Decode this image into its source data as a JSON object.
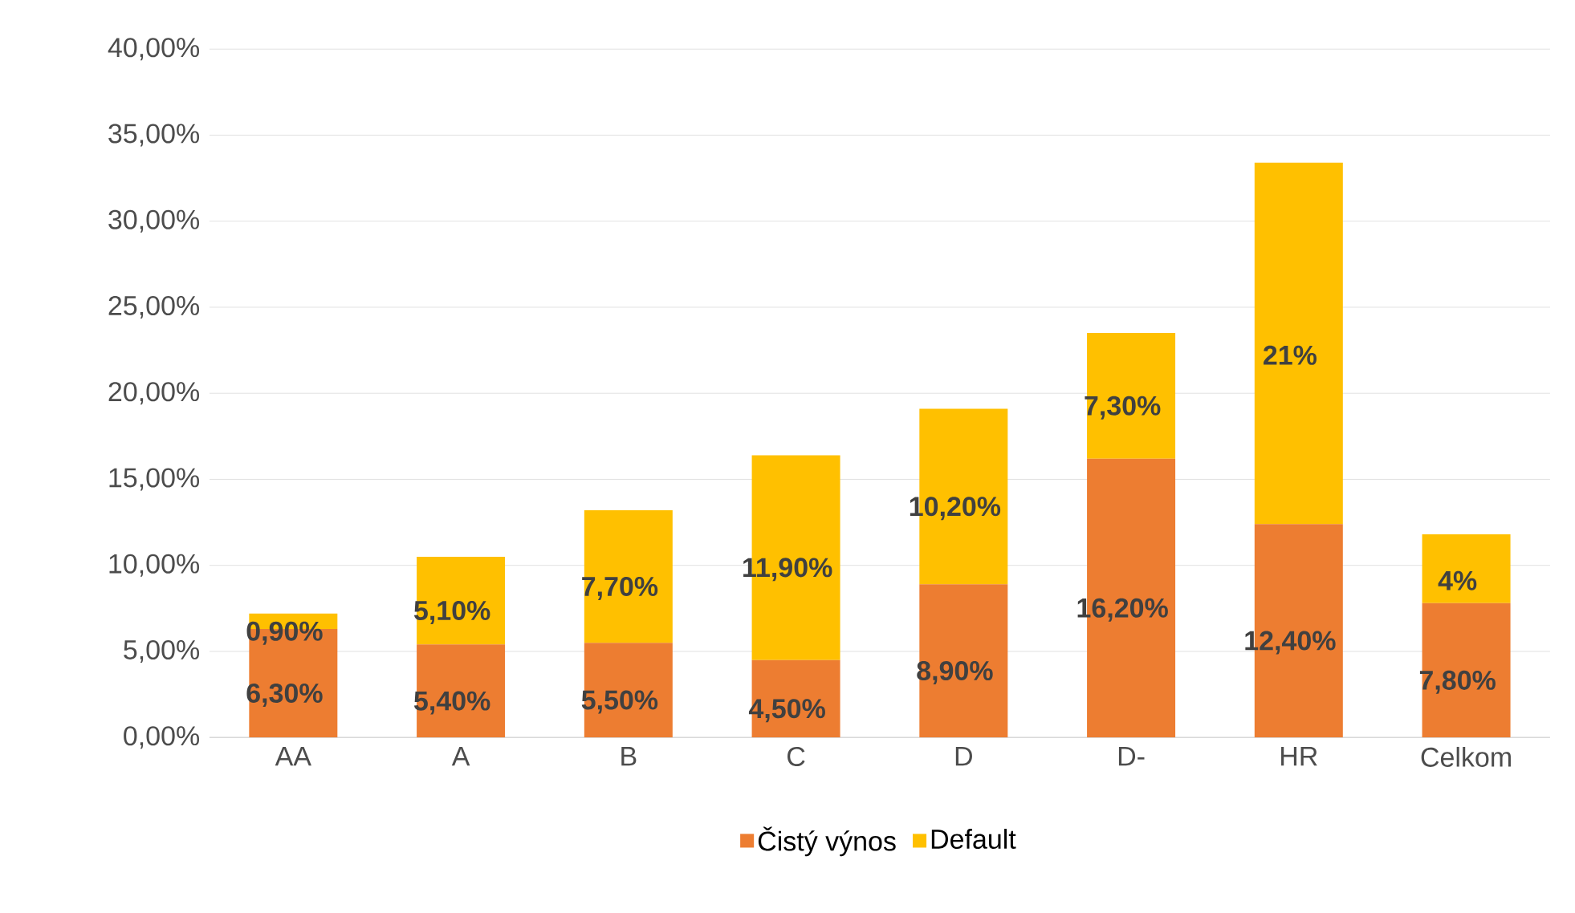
{
  "chart_data": {
    "type": "bar",
    "stacked": true,
    "categories": [
      "AA",
      "A",
      "B",
      "C",
      "D",
      "D-",
      "HR",
      "Celkom"
    ],
    "series": [
      {
        "name": "Čistý výnos",
        "color": "#ed7d31",
        "values": [
          6.3,
          5.4,
          5.5,
          4.5,
          8.9,
          16.2,
          12.4,
          7.8
        ],
        "value_labels": [
          "6,30%",
          "5,40%",
          "5,50%",
          "4,50%",
          "8,90%",
          "16,20%",
          "12,40%",
          "7,80%"
        ]
      },
      {
        "name": "Default",
        "color": "#ffc000",
        "values": [
          0.9,
          5.1,
          7.7,
          11.9,
          10.2,
          7.3,
          21,
          4
        ],
        "value_labels": [
          "0,90%",
          "5,10%",
          "7,70%",
          "11,90%",
          "10,20%",
          "7,30%",
          "21%",
          "4%"
        ]
      }
    ],
    "ylim": [
      0,
      40
    ],
    "yticks": [
      {
        "value": 0,
        "label": "0,00%"
      },
      {
        "value": 5,
        "label": "5,00%"
      },
      {
        "value": 10,
        "label": "10,00%"
      },
      {
        "value": 15,
        "label": "15,00%"
      },
      {
        "value": 20,
        "label": "20,00%"
      },
      {
        "value": 25,
        "label": "25,00%"
      },
      {
        "value": 30,
        "label": "30,00%"
      },
      {
        "value": 35,
        "label": "35,00%"
      },
      {
        "value": 40,
        "label": "40,00%"
      }
    ],
    "grid": "y",
    "legend": "bottom"
  }
}
